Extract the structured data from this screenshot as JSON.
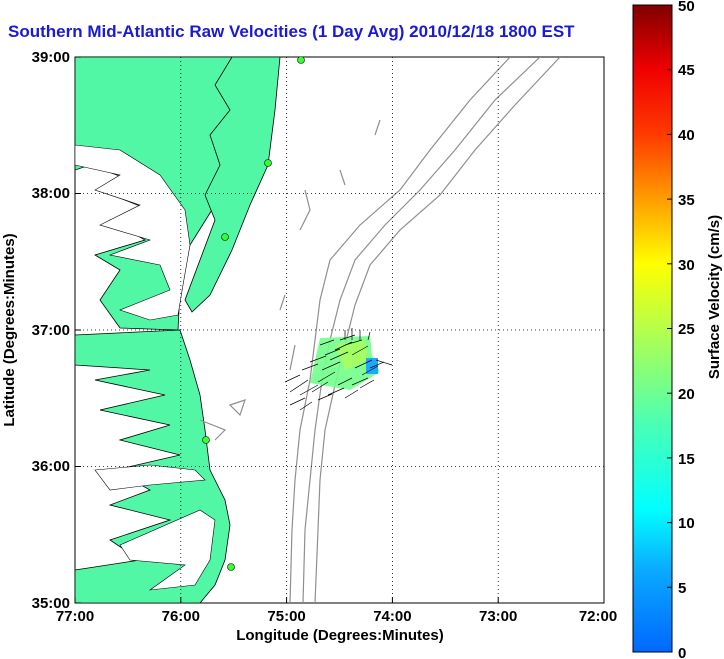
{
  "title": "Southern Mid-Atlantic Raw Velocities (1 Day Avg) 2010/12/18 1800 EST",
  "map": {
    "xlabel": "Longitude (Degrees:Minutes)",
    "ylabel": "Latitude (Degrees:Minutes)",
    "x_ticks": [
      "77:00",
      "76:00",
      "75:00",
      "74:00",
      "73:00",
      "72:00"
    ],
    "y_ticks": [
      "39:00",
      "38:00",
      "37:00",
      "36:00",
      "35:00"
    ],
    "lon_range": [
      -77,
      -72
    ],
    "lat_range": [
      35,
      39
    ],
    "grid": "dotted"
  },
  "colorbar": {
    "label": "Surface Velocity (cm/s)",
    "ticks": [
      "50",
      "45",
      "40",
      "35",
      "30",
      "25",
      "20",
      "15",
      "10",
      "5",
      "0"
    ],
    "range": [
      0,
      50
    ]
  },
  "colors": {
    "land": "#52f7a6",
    "coastline": "#000000",
    "bathymetry": "#8f8f8f",
    "title": "#1a1ad6",
    "station": "#33ff33"
  }
}
